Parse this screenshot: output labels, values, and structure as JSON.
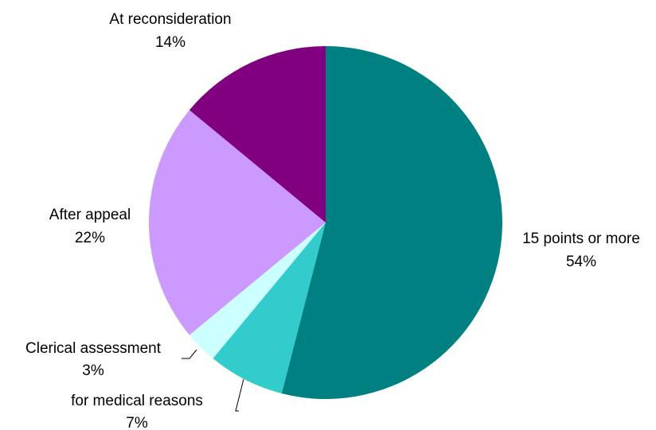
{
  "chart_data": {
    "type": "pie",
    "title": "",
    "start_angle_deg": 0,
    "direction": "clockwise",
    "slices": [
      {
        "label": "15 points or more",
        "value": 54,
        "value_label": "54%",
        "color": "#008080"
      },
      {
        "label": "for medical reasons",
        "value": 7,
        "value_label": "7%",
        "color": "#33CCCC"
      },
      {
        "label": "Clerical assessment",
        "value": 3,
        "value_label": "3%",
        "color": "#CCFFFF"
      },
      {
        "label": "After appeal",
        "value": 22,
        "value_label": "22%",
        "color": "#CC99FF"
      },
      {
        "label": "At reconsideration",
        "value": 14,
        "value_label": "14%",
        "color": "#800080"
      }
    ],
    "legend": "none"
  }
}
